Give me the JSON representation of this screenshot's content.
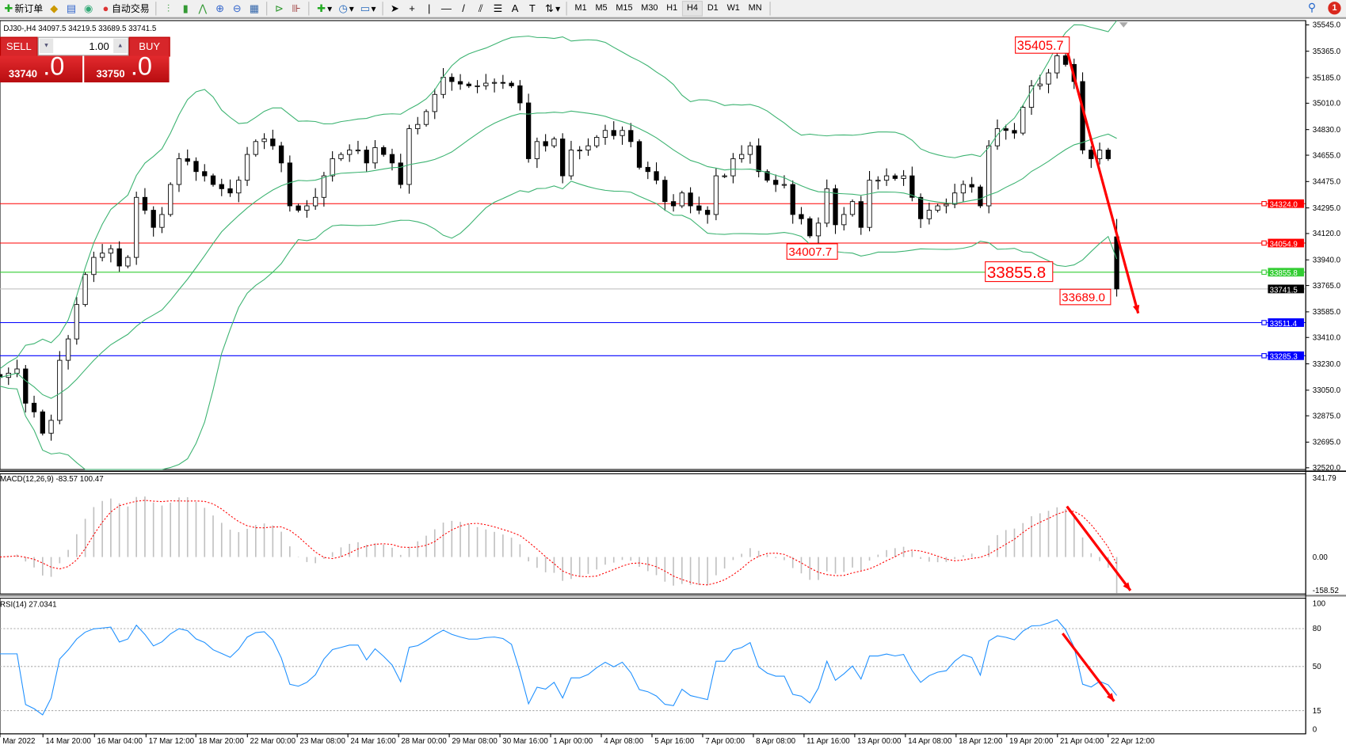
{
  "toolbar": {
    "new_order": "新订单",
    "auto_trading": "自动交易",
    "icons": [
      "new-order-icon",
      "market-watch-icon",
      "data-window-icon",
      "signal-icon",
      "auto-trading-icon",
      "bar-chart-icon",
      "candlestick-icon",
      "line-chart-icon",
      "zoom-in-icon",
      "zoom-out-icon",
      "tile-windows-icon",
      "auto-scroll-icon",
      "chart-shift-icon",
      "indicators-icon",
      "periods-icon",
      "templates-icon",
      "cursor-icon",
      "crosshair-icon",
      "vertical-line-icon",
      "horizontal-line-icon",
      "trendline-icon",
      "equidistant-channel-icon",
      "fibonacci-icon",
      "text-icon",
      "text-label-icon",
      "arrows-icon"
    ],
    "timeframes": [
      "M1",
      "M5",
      "M15",
      "M30",
      "H1",
      "H4",
      "D1",
      "W1",
      "MN"
    ],
    "active_timeframe": "H4",
    "notification_count": "1"
  },
  "chart_header": "DJ30-,H4  34097.5 34219.5 33689.5 33741.5",
  "one_click": {
    "sell": "SELL",
    "buy": "BUY",
    "lot": "1.00",
    "sell_price_main": "33740",
    "sell_price_big": ".0",
    "buy_price_main": "33750",
    "buy_price_big": ".0"
  },
  "colors": {
    "bull_body": "#ffffff",
    "bear_body": "#000000",
    "bands": "#3cb371",
    "macd_hist": "#c0c0c0",
    "macd_signal": "#ff0000",
    "rsi": "#1e90ff",
    "arrow": "#ff0000"
  },
  "chart_data": [
    {
      "type": "candlestick",
      "symbol": "DJ30-",
      "timeframe": "H4",
      "indicator": "Bollinger Bands",
      "ylim": [
        32520,
        35545
      ],
      "y_ticks": [
        "35545.0",
        "35365.0",
        "35185.0",
        "35010.0",
        "34830.0",
        "34655.0",
        "34475.0",
        "34295.0",
        "34120.0",
        "33940.0",
        "33765.0",
        "33585.0",
        "33410.0",
        "33230.0",
        "33050.0",
        "32875.0",
        "32695.0",
        "32520.0"
      ],
      "x_ticks": [
        "Mar 2022",
        "14 Mar 20:00",
        "16 Mar 04:00",
        "17 Mar 12:00",
        "18 Mar 20:00",
        "22 Mar 00:00",
        "23 Mar 08:00",
        "24 Mar 16:00",
        "28 Mar 00:00",
        "29 Mar 08:00",
        "30 Mar 16:00",
        "1 Apr 00:00",
        "4 Apr 08:00",
        "5 Apr 16:00",
        "7 Apr 00:00",
        "8 Apr 08:00",
        "11 Apr 16:00",
        "13 Apr 00:00",
        "14 Apr 08:00",
        "18 Apr 12:00",
        "19 Apr 20:00",
        "21 Apr 04:00",
        "22 Apr 12:00"
      ],
      "close": [
        33137,
        33166,
        33195,
        32961,
        32902,
        32756,
        32844,
        33254,
        33400,
        33635,
        33840,
        33957,
        33986,
        34016,
        33898,
        33957,
        34367,
        34279,
        34162,
        34250,
        34455,
        34631,
        34613,
        34543,
        34514,
        34455,
        34426,
        34397,
        34484,
        34660,
        34748,
        34766,
        34719,
        34602,
        34309,
        34279,
        34309,
        34367,
        34514,
        34631,
        34660,
        34690,
        34690,
        34602,
        34707,
        34660,
        34602,
        34455,
        34836,
        34865,
        34953,
        35070,
        35187,
        35158,
        35141,
        35129,
        35129,
        35147,
        35152,
        35147,
        35129,
        35012,
        34631,
        34748,
        34719,
        34766,
        34514,
        34690,
        34690,
        34719,
        34777,
        34824,
        34789,
        34824,
        34748,
        34572,
        34543,
        34484,
        34338,
        34309,
        34397,
        34309,
        34279,
        34250,
        34514,
        34514,
        34631,
        34660,
        34719,
        34543,
        34484,
        34455,
        34455,
        34250,
        34221,
        34104,
        34191,
        34426,
        34180,
        34250,
        34338,
        34162,
        34484,
        34484,
        34514,
        34496,
        34514,
        34367,
        34221,
        34279,
        34309,
        34320,
        34397,
        34455,
        34438,
        34309,
        34719,
        34836,
        34824,
        34806,
        34982,
        35129,
        35141,
        35217,
        35334,
        35275,
        35158,
        34690,
        34631,
        34690,
        34631,
        33741.5
      ],
      "last_ohlc": {
        "open": 34097.5,
        "high": 34219.5,
        "low": 33689.5,
        "close": 33741.5
      },
      "horizontal_lines": [
        {
          "price": "34324.0",
          "value": 34324.0,
          "color": "#ff0000"
        },
        {
          "price": "34054.9",
          "value": 34054.9,
          "color": "#ff0000"
        },
        {
          "price": "33855.8",
          "value": 33855.8,
          "color": "#32cd32"
        },
        {
          "price": "33741.5",
          "value": 33741.5,
          "color": "#c0c0c0",
          "label_bg": "#000000"
        },
        {
          "price": "33511.4",
          "value": 33511.4,
          "color": "#0000ff"
        },
        {
          "price": "33285.3",
          "value": 33285.3,
          "color": "#0000ff"
        }
      ],
      "price_labels": [
        "35405.7",
        "34007.7",
        "33855.8",
        "33689.0"
      ]
    },
    {
      "type": "macd",
      "label": "MACD(12,26,9) -83.57 100.47",
      "y_ticks": [
        "341.79",
        "0.00",
        "-158.52"
      ],
      "ylim": [
        -158.52,
        341.79
      ]
    },
    {
      "type": "rsi",
      "label": "RSI(14) 27.0341",
      "y_ticks": [
        "100",
        "80",
        "50",
        "15",
        "0"
      ],
      "levels": [
        80,
        50,
        15
      ],
      "ylim": [
        0,
        100
      ]
    }
  ]
}
